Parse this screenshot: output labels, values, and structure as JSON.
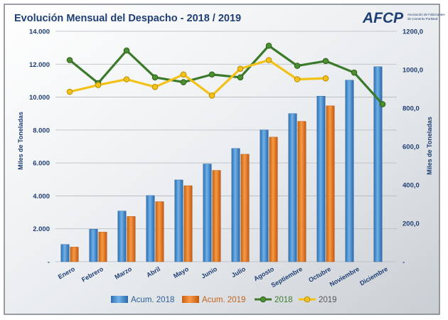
{
  "logo": {
    "text": "AFCP",
    "tagline_1": "Asociación de Fabricantes",
    "tagline_2": "de Cemento Portland",
    "color": "#1f3f74"
  },
  "chart_data": {
    "type": "bar",
    "title": "Evolución Mensual del Despacho - 2018 / 2019",
    "ylabel_left": "Miles de Toneladas",
    "ylabel_right": "Miles de Toneladas",
    "categories": [
      "Enero",
      "Febrero",
      "Marzo",
      "Abril",
      "Mayo",
      "Junio",
      "Julio",
      "Agosto",
      "Septiembre",
      "Octubre",
      "Noviembre",
      "Diciembre"
    ],
    "y_left": {
      "min": 0,
      "max": 14000,
      "ticks": [
        0,
        2000,
        4000,
        6000,
        8000,
        10000,
        12000,
        14000
      ],
      "tick_labels": [
        "-",
        "2.000",
        "4.000",
        "6.000",
        "8.000",
        "10.000",
        "12.000",
        "14.000"
      ]
    },
    "y_right": {
      "min": 0,
      "max": 1200,
      "ticks": [
        0,
        200,
        400,
        600,
        800,
        1000,
        1200
      ],
      "tick_labels": [
        "-",
        "200,0",
        "400,0",
        "600,0",
        "800,0",
        "1000,0",
        "1200,0"
      ]
    },
    "grid": true,
    "legend_position": "bottom",
    "bar_series": [
      {
        "name": "Acum. 2018",
        "axis": "left",
        "color": "#3f8fd2",
        "values": [
          1050,
          1980,
          3080,
          4020,
          4970,
          5940,
          6880,
          8010,
          9000,
          10060,
          11030,
          11850
        ]
      },
      {
        "name": "Acum. 2019",
        "axis": "left",
        "color": "#ee7d21",
        "values": [
          890,
          1800,
          2750,
          3650,
          4620,
          5550,
          6530,
          7570,
          8530,
          9470,
          null,
          null
        ]
      }
    ],
    "line_series": [
      {
        "name": "2018",
        "axis": "right",
        "color": "#3b7a2a",
        "marker_color": "#4c8f2e",
        "values": [
          1050,
          930,
          1100,
          960,
          935,
          975,
          960,
          1125,
          1020,
          1045,
          985,
          820
        ]
      },
      {
        "name": "2019",
        "axis": "right",
        "color": "#f2c21a",
        "marker_color": "#f2c21a",
        "values": [
          885,
          920,
          950,
          910,
          975,
          865,
          1005,
          1050,
          950,
          955,
          null,
          null
        ]
      }
    ]
  }
}
